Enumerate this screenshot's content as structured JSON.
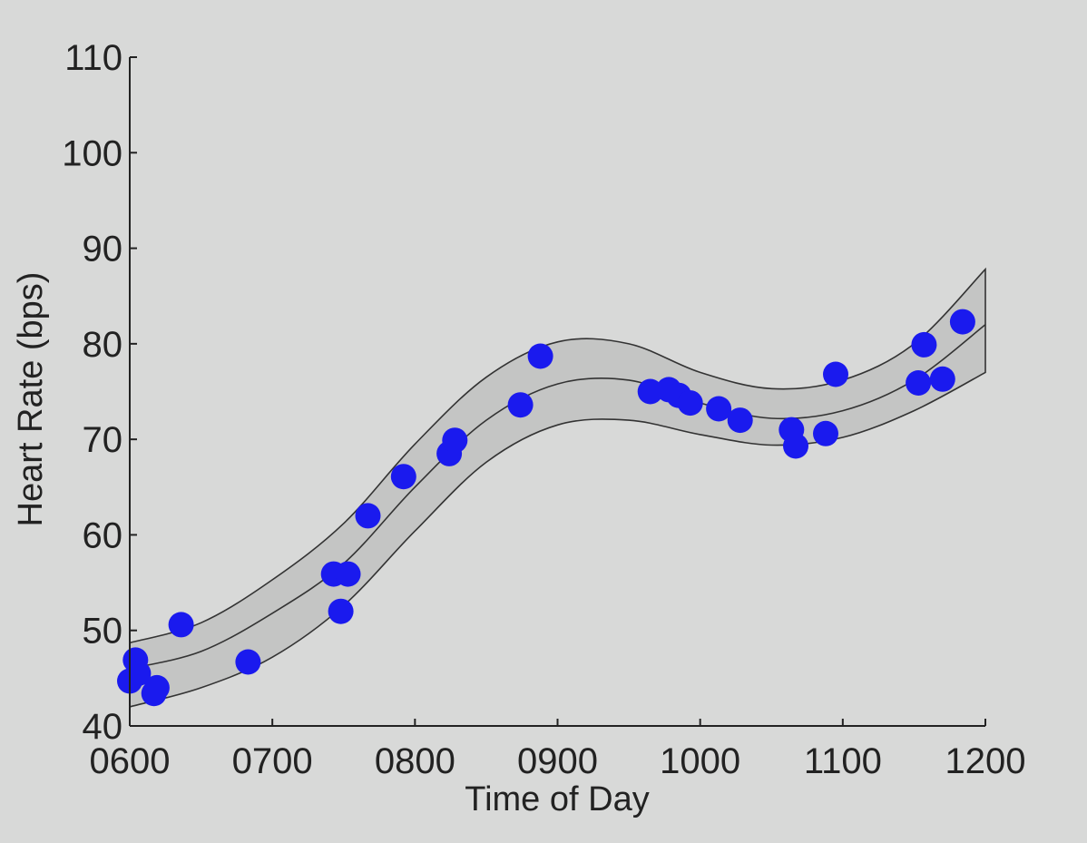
{
  "chart_data": {
    "type": "scatter",
    "title": "",
    "xlabel": "Time of Day",
    "ylabel": "Heart Rate (bps)",
    "xlim": [
      600,
      1200
    ],
    "ylim": [
      40,
      110
    ],
    "xticks": [
      600,
      700,
      800,
      900,
      1000,
      1100,
      1200
    ],
    "xtick_labels": [
      "0600",
      "0700",
      "0800",
      "0900",
      "1000",
      "1100",
      "1200"
    ],
    "yticks": [
      40,
      50,
      60,
      70,
      80,
      90,
      100,
      110
    ],
    "ytick_labels": [
      "40",
      "50",
      "60",
      "70",
      "80",
      "90",
      "100",
      "110"
    ],
    "grid": false,
    "legend": "none",
    "colors": {
      "points": "#1a1aee",
      "band": "#c4c5c4",
      "lines": "#333333",
      "axis": "#222222"
    },
    "series": [
      {
        "kind": "points",
        "x": [
          600,
          604,
          606,
          617,
          619,
          636,
          683,
          743,
          748,
          753,
          767,
          792,
          824,
          828,
          874,
          888,
          965,
          978,
          985,
          993,
          1013,
          1028,
          1064,
          1067,
          1088,
          1095,
          1153,
          1157,
          1170,
          1184
        ],
        "y": [
          44.7,
          46.9,
          45.5,
          43.4,
          44.0,
          50.6,
          46.7,
          55.9,
          52.0,
          55.9,
          62.0,
          66.1,
          68.5,
          69.9,
          73.6,
          78.7,
          75.0,
          75.2,
          74.6,
          73.8,
          73.2,
          72.0,
          71.0,
          69.3,
          70.6,
          76.8,
          75.9,
          79.9,
          76.3,
          82.3
        ]
      },
      {
        "kind": "fit",
        "x": [
          600,
          650,
          700,
          750,
          800,
          850,
          900,
          950,
          1000,
          1050,
          1100,
          1150,
          1200
        ],
        "y": [
          46.0,
          47.8,
          51.8,
          57.0,
          65.0,
          72.0,
          75.8,
          76.2,
          73.8,
          72.2,
          73.0,
          76.2,
          82.0
        ]
      },
      {
        "kind": "upper",
        "x": [
          600,
          650,
          700,
          750,
          800,
          850,
          900,
          950,
          1000,
          1050,
          1100,
          1150,
          1200
        ],
        "y": [
          48.7,
          50.8,
          55.3,
          61.2,
          69.5,
          76.5,
          80.2,
          80.0,
          77.0,
          75.3,
          76.2,
          80.0,
          87.8
        ]
      },
      {
        "kind": "lower",
        "x": [
          600,
          650,
          700,
          750,
          800,
          850,
          900,
          950,
          1000,
          1050,
          1100,
          1150,
          1200
        ],
        "y": [
          42.0,
          44.0,
          47.2,
          52.6,
          60.4,
          67.6,
          71.5,
          72.0,
          70.5,
          69.4,
          70.2,
          73.0,
          77.0
        ]
      }
    ]
  }
}
